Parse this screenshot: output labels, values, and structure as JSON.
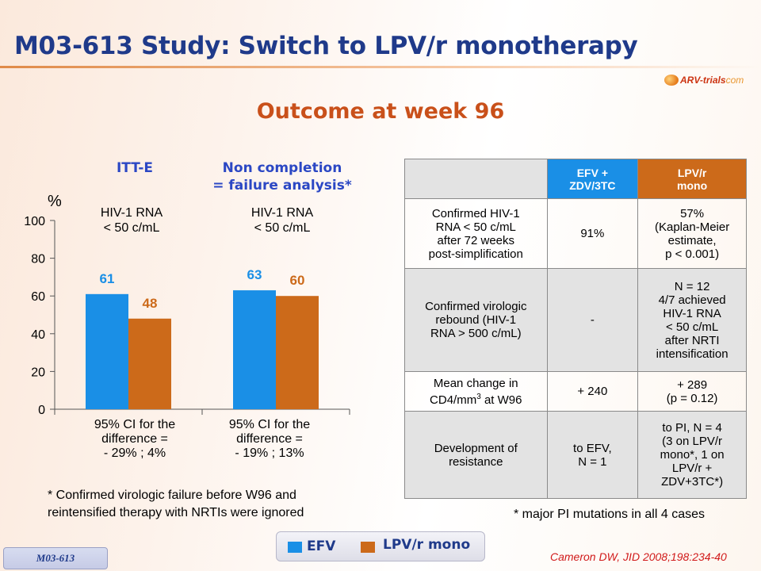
{
  "header": {
    "title": "M03-613 Study: Switch to LPV/r monotherapy",
    "logo_text": "ARV-trials",
    "logo_domain": "com",
    "subtitle": "Outcome at week 96"
  },
  "chart_headers": {
    "left": "ITT-E",
    "right_line1": "Non completion",
    "right_line2": "= failure analysis*"
  },
  "chart_data": {
    "type": "bar",
    "ylabel": "%",
    "ylim": [
      0,
      100
    ],
    "yticks": [
      "0",
      "20",
      "40",
      "60",
      "80",
      "100"
    ],
    "group_labels": [
      [
        "HIV-1 RNA",
        "< 50 c/mL"
      ],
      [
        "HIV-1 RNA",
        "< 50 c/mL"
      ]
    ],
    "series": [
      {
        "name": "EFV",
        "color": "#1a8fe6",
        "label_color": "#1a8fe6",
        "values": [
          61,
          63
        ]
      },
      {
        "name": "LPV/r mono",
        "color": "#cc6a1a",
        "label_color": "#cc6a1a",
        "values": [
          48,
          60
        ]
      }
    ],
    "ci_text": [
      [
        "95% CI for the",
        "difference =",
        "- 29% ; 4%"
      ],
      [
        "95% CI for the",
        "difference =",
        "- 19% ; 13%"
      ]
    ]
  },
  "footnote_left": [
    "* Confirmed virologic failure before W96 and",
    "reintensified therapy with NRTIs were ignored"
  ],
  "table": {
    "headers": [
      "EFV +\nZDV/3TC",
      "LPV/r\nmono"
    ],
    "rows": [
      {
        "label": "Confirmed HIV-1\nRNA < 50 c/mL\nafter 72 weeks\npost-simplification",
        "efv": "91%",
        "lpv": "57%\n(Kaplan-Meier\nestimate,\np < 0.001)"
      },
      {
        "label": "Confirmed virologic\nrebound (HIV-1\nRNA > 500 c/mL)",
        "efv": "-",
        "lpv": "N = 12\n4/7 achieved\nHIV-1 RNA\n< 50 c/mL\nafter NRTI\nintensification"
      },
      {
        "label_pre": "Mean change in\nCD4/mm",
        "label_sup": "3",
        "label_post": " at W96",
        "efv": "+ 240",
        "lpv": "+ 289\n(p = 0.12)"
      },
      {
        "label": "Development of\nresistance",
        "efv": "to EFV,\nN = 1",
        "lpv": "to PI, N = 4\n(3 on LPV/r\nmono*, 1 on\nLPV/r +\nZDV+3TC*)"
      }
    ]
  },
  "footnote_right": "* major PI mutations in all 4 cases",
  "legend": {
    "efv_label": "EFV",
    "lpv_label": "LPV/r mono",
    "efv_color": "#1a8fe6",
    "lpv_color": "#cc6a1a"
  },
  "badge": "M03-613",
  "citation": "Cameron DW, JID 2008;198:234-40"
}
